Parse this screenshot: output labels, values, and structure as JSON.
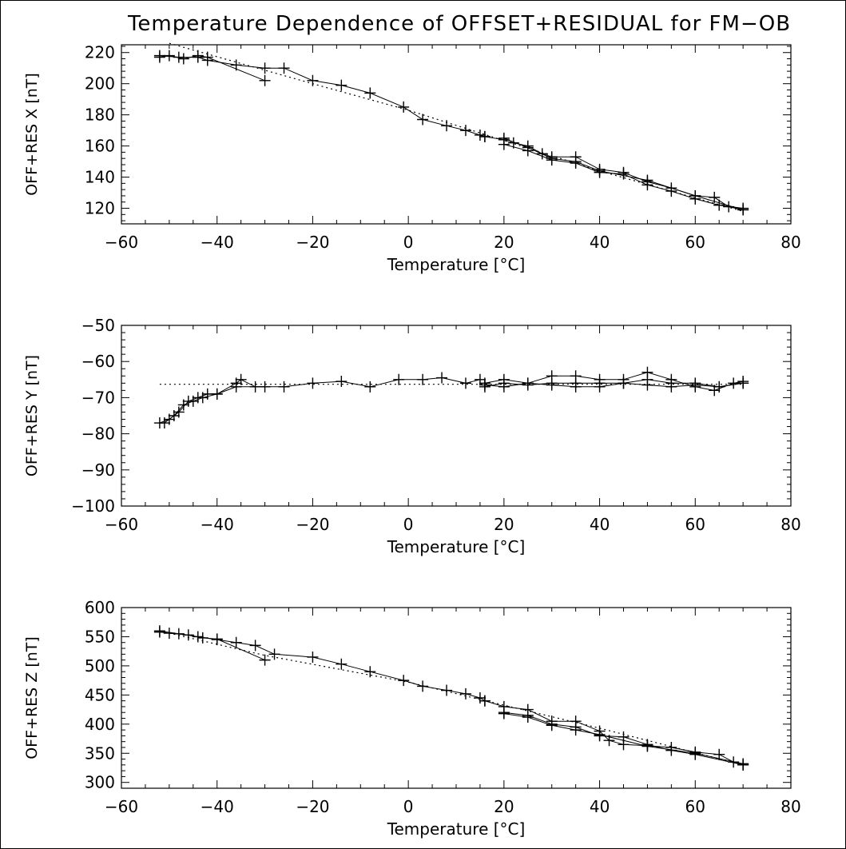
{
  "title": "Temperature Dependence of OFFSET+RESIDUAL for FM−OB",
  "chart_data": [
    {
      "type": "line",
      "title": "",
      "xlabel": "Temperature [°C]",
      "ylabel": "OFF+RES X [nT]",
      "xlim": [
        -60,
        80
      ],
      "ylim": [
        110,
        225
      ],
      "xticks": [
        -60,
        -40,
        -20,
        0,
        20,
        40,
        60,
        80
      ],
      "yticks": [
        120,
        140,
        160,
        180,
        200,
        220
      ],
      "grid": false,
      "fit_line": {
        "style": "dotted",
        "points": [
          [
            -50,
            226
          ],
          [
            -20,
            200
          ],
          [
            0,
            183
          ],
          [
            40,
            144
          ],
          [
            70,
            118
          ]
        ]
      },
      "series": [
        {
          "points": [
            [
              -52,
              218
            ],
            [
              -48,
              217
            ],
            [
              -44,
              217
            ],
            [
              -42,
              215
            ],
            [
              -36,
              212
            ],
            [
              -30,
              210
            ],
            [
              -26,
              210
            ],
            [
              -20,
              202
            ],
            [
              -14,
              199
            ],
            [
              -8,
              194
            ],
            [
              -1,
              185
            ],
            [
              3,
              177
            ],
            [
              8,
              173
            ],
            [
              12,
              170
            ],
            [
              15,
              167
            ],
            [
              16,
              166
            ]
          ]
        },
        {
          "points": [
            [
              -52,
              217
            ],
            [
              -50,
              218
            ],
            [
              -47,
              216
            ],
            [
              -44,
              218
            ],
            [
              -42,
              217
            ],
            [
              -30,
              202
            ]
          ]
        },
        {
          "points": [
            [
              16,
              166
            ],
            [
              20,
              164
            ],
            [
              22,
              162
            ],
            [
              25,
              160
            ],
            [
              28,
              155
            ],
            [
              30,
              153
            ],
            [
              35,
              153
            ],
            [
              40,
              145
            ],
            [
              45,
              143
            ],
            [
              50,
              137
            ],
            [
              55,
              133
            ],
            [
              60,
              128
            ],
            [
              64,
              127
            ],
            [
              67,
              121
            ],
            [
              70,
              119
            ]
          ]
        },
        {
          "points": [
            [
              20,
              161
            ],
            [
              25,
              157
            ],
            [
              30,
              151
            ],
            [
              35,
              149
            ],
            [
              40,
              143
            ],
            [
              45,
              142
            ],
            [
              50,
              135
            ],
            [
              55,
              131
            ],
            [
              60,
              126
            ],
            [
              65,
              122
            ],
            [
              70,
              120
            ]
          ]
        },
        {
          "points": [
            [
              20,
              165
            ],
            [
              25,
              159
            ],
            [
              30,
              152
            ],
            [
              35,
              150
            ],
            [
              40,
              144
            ],
            [
              50,
              138
            ],
            [
              60,
              128
            ],
            [
              70,
              119
            ]
          ]
        }
      ]
    },
    {
      "type": "line",
      "title": "",
      "xlabel": "Temperature [°C]",
      "ylabel": "OFF+RES Y [nT]",
      "xlim": [
        -60,
        80
      ],
      "ylim": [
        -100,
        -50
      ],
      "xticks": [
        -60,
        -40,
        -20,
        0,
        20,
        40,
        60,
        80
      ],
      "yticks": [
        -100,
        -90,
        -80,
        -70,
        -60,
        -50
      ],
      "grid": false,
      "fit_line": {
        "style": "dotted",
        "points": [
          [
            -52,
            -66.3
          ],
          [
            70,
            -66.3
          ]
        ]
      },
      "series": [
        {
          "points": [
            [
              -52,
              -77
            ],
            [
              -50,
              -76
            ],
            [
              -48,
              -74
            ],
            [
              -46,
              -71
            ],
            [
              -44,
              -70
            ],
            [
              -42,
              -69
            ],
            [
              -40,
              -69
            ],
            [
              -36,
              -66
            ],
            [
              -35,
              -65
            ],
            [
              -32,
              -67
            ],
            [
              -26,
              -67
            ],
            [
              -20,
              -66
            ],
            [
              -14,
              -65.5
            ],
            [
              -8,
              -67
            ],
            [
              -2,
              -65
            ],
            [
              3,
              -65
            ],
            [
              7,
              -64.5
            ],
            [
              12,
              -66
            ],
            [
              15,
              -65
            ]
          ]
        },
        {
          "points": [
            [
              -51,
              -77
            ],
            [
              -49,
              -75
            ],
            [
              -47,
              -72
            ],
            [
              -45,
              -71
            ],
            [
              -43,
              -70
            ],
            [
              -40,
              -69
            ],
            [
              -36,
              -67
            ],
            [
              -30,
              -67
            ]
          ]
        },
        {
          "points": [
            [
              16,
              -66
            ],
            [
              20,
              -65
            ],
            [
              25,
              -66
            ],
            [
              30,
              -64
            ],
            [
              35,
              -64
            ],
            [
              40,
              -65
            ],
            [
              45,
              -65
            ],
            [
              50,
              -63
            ],
            [
              55,
              -65
            ],
            [
              60,
              -67
            ],
            [
              64,
              -68
            ],
            [
              68,
              -66
            ],
            [
              70,
              -65.5
            ]
          ]
        },
        {
          "points": [
            [
              16,
              -67
            ],
            [
              20,
              -66
            ],
            [
              25,
              -66.5
            ],
            [
              30,
              -66
            ],
            [
              35,
              -66
            ],
            [
              40,
              -66
            ],
            [
              45,
              -66
            ],
            [
              50,
              -65
            ],
            [
              55,
              -66
            ],
            [
              60,
              -66
            ],
            [
              65,
              -67
            ],
            [
              70,
              -66
            ]
          ]
        },
        {
          "points": [
            [
              16,
              -66.5
            ],
            [
              20,
              -67
            ],
            [
              25,
              -66
            ],
            [
              30,
              -66.5
            ],
            [
              35,
              -67
            ],
            [
              40,
              -67
            ],
            [
              45,
              -66
            ],
            [
              50,
              -66.5
            ],
            [
              55,
              -67
            ],
            [
              60,
              -66.5
            ],
            [
              65,
              -67
            ],
            [
              70,
              -66
            ]
          ]
        }
      ]
    },
    {
      "type": "line",
      "title": "",
      "xlabel": "Temperature [°C]",
      "ylabel": "OFF+RES Z [nT]",
      "xlim": [
        -60,
        80
      ],
      "ylim": [
        290,
        600
      ],
      "xticks": [
        -60,
        -40,
        -20,
        0,
        20,
        40,
        60,
        80
      ],
      "yticks": [
        300,
        350,
        400,
        450,
        500,
        550,
        600
      ],
      "grid": false,
      "fit_line": {
        "style": "dotted",
        "points": [
          [
            -52,
            560
          ],
          [
            -30,
            518
          ],
          [
            0,
            472
          ],
          [
            40,
            393
          ],
          [
            70,
            330
          ]
        ]
      },
      "series": [
        {
          "points": [
            [
              -52,
              560
            ],
            [
              -48,
              555
            ],
            [
              -44,
              550
            ],
            [
              -40,
              545
            ],
            [
              -36,
              540
            ],
            [
              -32,
              535
            ],
            [
              -28,
              520
            ],
            [
              -20,
              515
            ],
            [
              -14,
              503
            ],
            [
              -8,
              490
            ],
            [
              -1,
              475
            ],
            [
              3,
              465
            ],
            [
              8,
              458
            ],
            [
              12,
              452
            ],
            [
              15,
              445
            ],
            [
              16,
              440
            ]
          ]
        },
        {
          "points": [
            [
              -52,
              558
            ],
            [
              -50,
              556
            ],
            [
              -46,
              553
            ],
            [
              -43,
              548
            ],
            [
              -40,
              546
            ],
            [
              -30,
              510
            ]
          ]
        },
        {
          "points": [
            [
              16,
              440
            ],
            [
              20,
              430
            ],
            [
              25,
              425
            ],
            [
              30,
              405
            ],
            [
              35,
              405
            ],
            [
              40,
              388
            ],
            [
              42,
              372
            ],
            [
              45,
              365
            ],
            [
              50,
              363
            ],
            [
              55,
              360
            ],
            [
              60,
              352
            ],
            [
              65,
              348
            ],
            [
              68,
              335
            ],
            [
              70,
              330
            ]
          ]
        },
        {
          "points": [
            [
              20,
              420
            ],
            [
              25,
              415
            ],
            [
              30,
              400
            ],
            [
              35,
              395
            ],
            [
              40,
              380
            ],
            [
              45,
              378
            ],
            [
              50,
              365
            ],
            [
              55,
              355
            ],
            [
              60,
              348
            ],
            [
              70,
              330
            ]
          ]
        },
        {
          "points": [
            [
              20,
              418
            ],
            [
              25,
              412
            ],
            [
              30,
              398
            ],
            [
              35,
              390
            ],
            [
              40,
              382
            ],
            [
              50,
              362
            ],
            [
              60,
              350
            ],
            [
              70,
              332
            ]
          ]
        }
      ]
    }
  ]
}
